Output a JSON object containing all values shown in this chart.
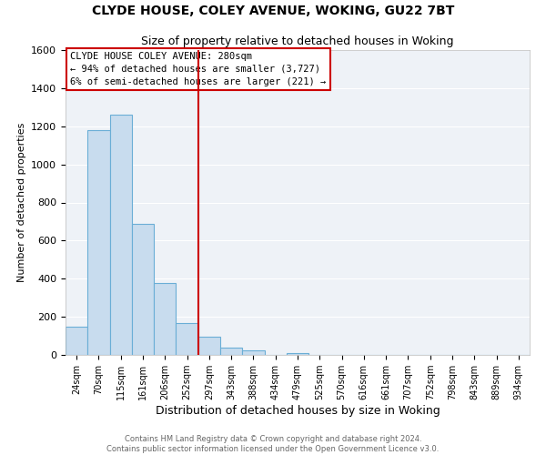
{
  "title": "CLYDE HOUSE, COLEY AVENUE, WOKING, GU22 7BT",
  "subtitle": "Size of property relative to detached houses in Woking",
  "xlabel": "Distribution of detached houses by size in Woking",
  "ylabel": "Number of detached properties",
  "bar_color": "#c8dcee",
  "bar_edge_color": "#6aaed6",
  "bg_color": "#eef2f7",
  "grid_color": "white",
  "bin_labels": [
    "24sqm",
    "70sqm",
    "115sqm",
    "161sqm",
    "206sqm",
    "252sqm",
    "297sqm",
    "343sqm",
    "388sqm",
    "434sqm",
    "479sqm",
    "525sqm",
    "570sqm",
    "616sqm",
    "661sqm",
    "707sqm",
    "752sqm",
    "798sqm",
    "843sqm",
    "889sqm",
    "934sqm"
  ],
  "bar_values": [
    150,
    1180,
    1260,
    690,
    375,
    165,
    95,
    38,
    22,
    0,
    10,
    0,
    0,
    0,
    0,
    0,
    0,
    0,
    0,
    0,
    0
  ],
  "vline_color": "#cc0000",
  "annotation_title": "CLYDE HOUSE COLEY AVENUE: 280sqm",
  "annotation_line1": "← 94% of detached houses are smaller (3,727)",
  "annotation_line2": "6% of semi-detached houses are larger (221) →",
  "annotation_box_color": "white",
  "annotation_box_edge": "#cc0000",
  "ylim": [
    0,
    1600
  ],
  "yticks": [
    0,
    200,
    400,
    600,
    800,
    1000,
    1200,
    1400,
    1600
  ],
  "footer1": "Contains HM Land Registry data © Crown copyright and database right 2024.",
  "footer2": "Contains public sector information licensed under the Open Government Licence v3.0."
}
